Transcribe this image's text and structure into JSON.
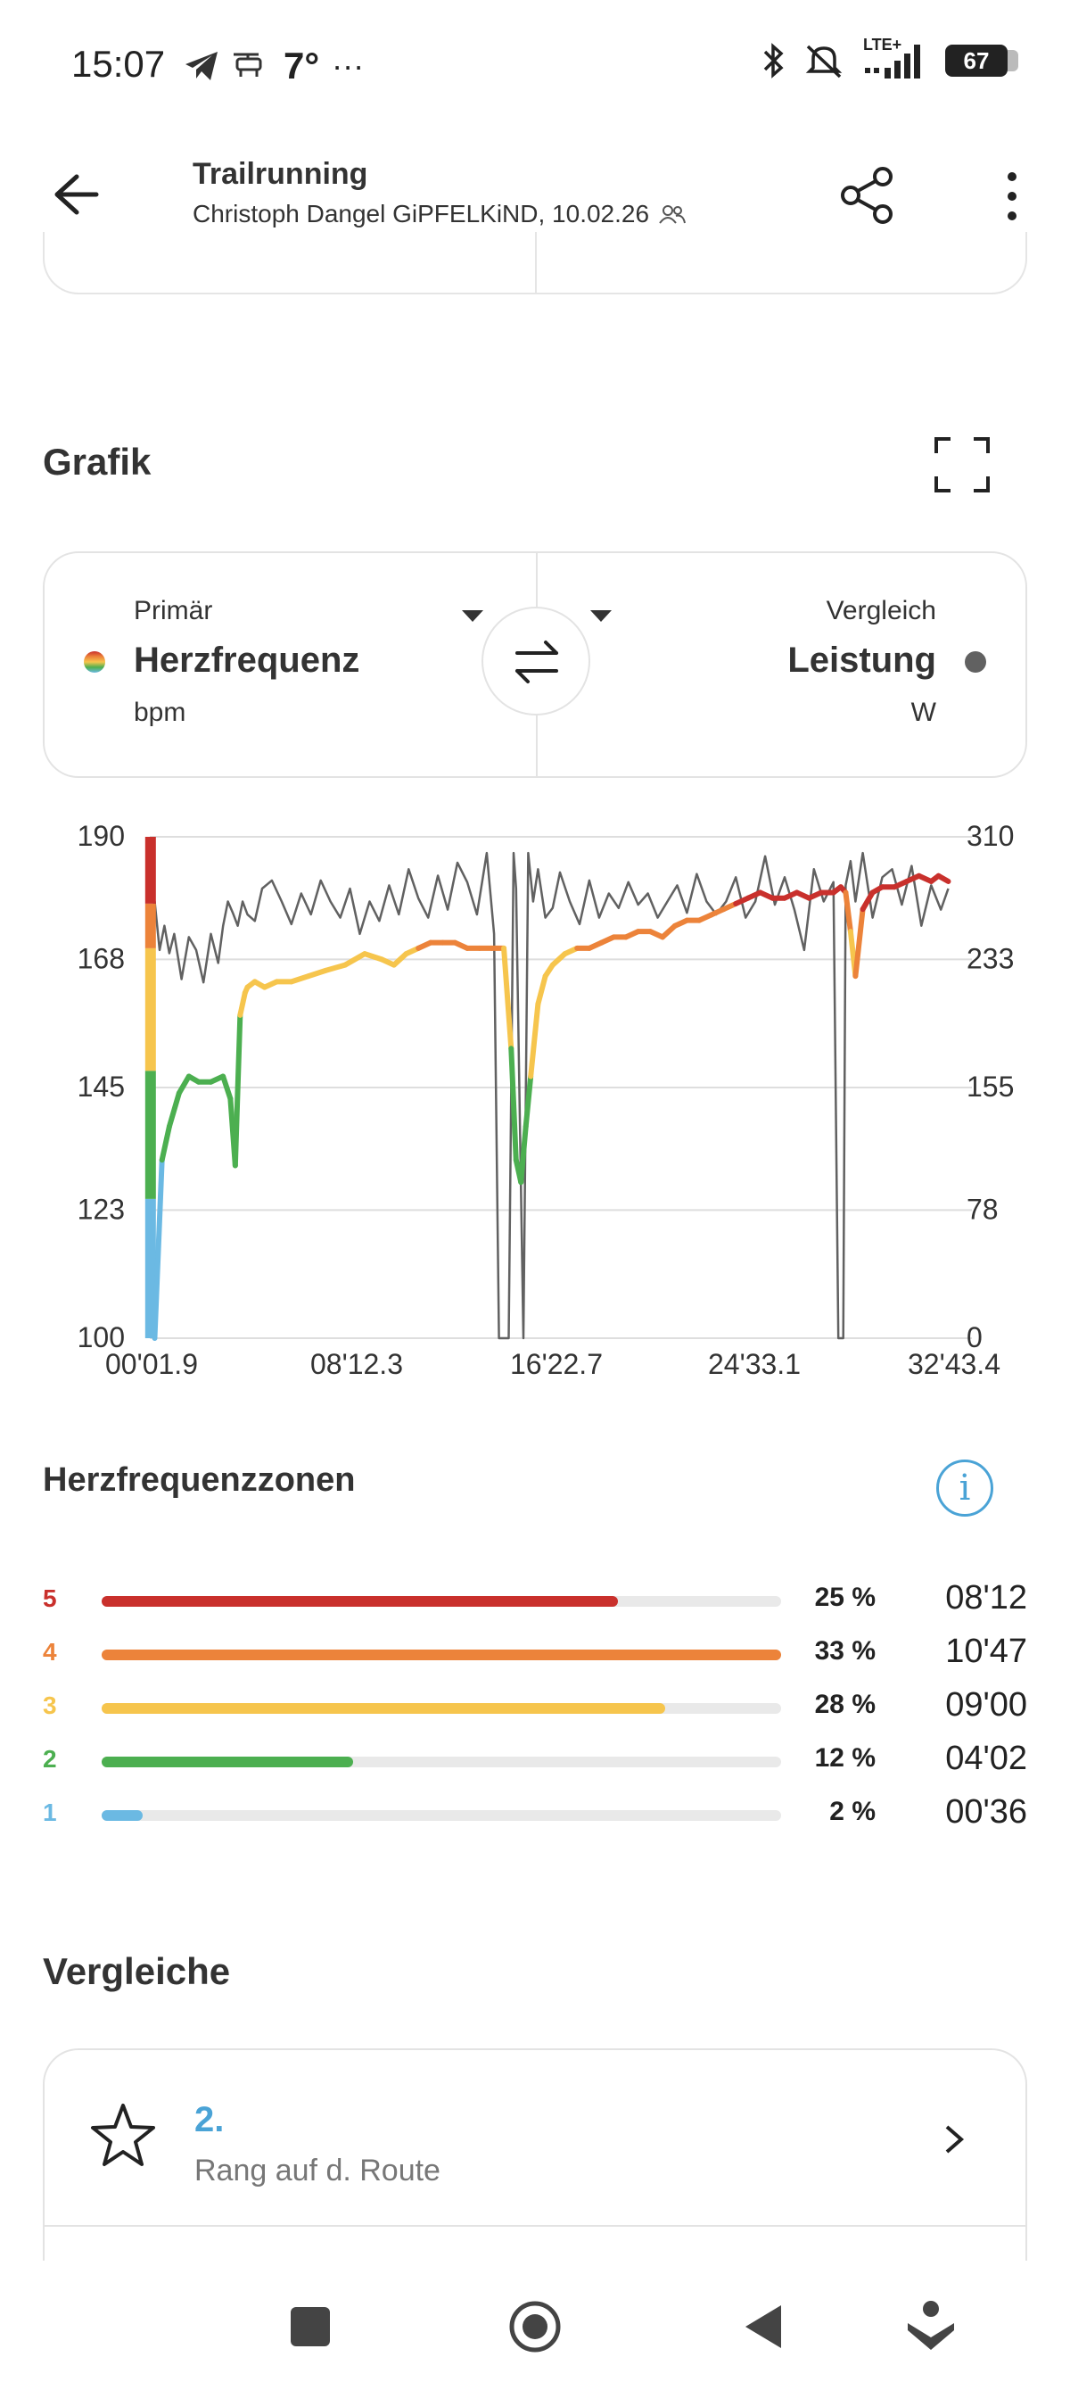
{
  "status_bar": {
    "time": "15:07",
    "temperature": "7°",
    "more": "···",
    "network": "LTE+",
    "battery": "67",
    "icons": [
      "telegram-icon",
      "drone-icon",
      "bluetooth-icon",
      "mute-icon",
      "signal-icon",
      "battery-icon"
    ]
  },
  "header": {
    "title": "Trailrunning",
    "subtitle": "Christoph Dangel GiPFELKiND, 10.02.26"
  },
  "graph_section": {
    "title": "Grafik",
    "primary": {
      "caption": "Primär",
      "metric": "Herzfrequenz",
      "unit": "bpm"
    },
    "compare": {
      "caption": "Vergleich",
      "metric": "Leistung",
      "unit": "W",
      "dot_color": "#616161"
    }
  },
  "chart_data": {
    "type": "line",
    "x_tick_labels": [
      "00'01.9",
      "08'12.3",
      "16'22.7",
      "24'33.1",
      "32'43.4"
    ],
    "y_left_ticks": [
      190,
      168,
      145,
      123,
      100
    ],
    "y_right_ticks": [
      310,
      233,
      155,
      78,
      0
    ],
    "ylim_left": [
      100,
      190
    ],
    "ylim_right": [
      0,
      310
    ],
    "grid": true,
    "zone_colors": {
      "1": "#6bb9e3",
      "2": "#4caf50",
      "3": "#f6c54d",
      "4": "#ec833a",
      "5": "#c9302c"
    },
    "zone_thresholds_bpm": [
      125,
      148,
      170,
      178
    ],
    "series": [
      {
        "name": "Herzfrequenz",
        "axis": "left",
        "x_minutes": [
          0.03,
          0.2,
          0.5,
          0.8,
          1.2,
          1.6,
          2.0,
          2.5,
          3.0,
          3.3,
          3.5,
          3.7,
          3.9,
          4.0,
          4.3,
          4.7,
          5.2,
          5.8,
          6.5,
          7.2,
          8.0,
          8.8,
          9.5,
          10.0,
          10.5,
          11.0,
          11.5,
          12.0,
          12.5,
          13.0,
          13.5,
          14.0,
          14.5,
          14.8,
          15.0,
          15.2,
          15.4,
          15.6,
          15.9,
          16.2,
          16.5,
          17.0,
          17.5,
          18.0,
          18.5,
          19.0,
          19.5,
          20.0,
          20.5,
          21.0,
          21.5,
          22.0,
          22.5,
          23.0,
          23.5,
          24.0,
          24.5,
          25.0,
          25.5,
          26.0,
          26.5,
          27.0,
          27.5,
          28.0,
          28.3,
          28.5,
          28.7,
          28.9,
          29.2,
          29.6,
          30.0,
          30.5,
          31.0,
          31.5,
          32.0,
          32.3,
          32.7
        ],
        "values": [
          190,
          100,
          132,
          138,
          144,
          147,
          146,
          146,
          147,
          143,
          131,
          158,
          162,
          163,
          164,
          163,
          164,
          164,
          165,
          166,
          167,
          169,
          168,
          167,
          169,
          170,
          171,
          171,
          171,
          170,
          170,
          170,
          170,
          152,
          132,
          128,
          138,
          147,
          160,
          165,
          167,
          169,
          170,
          170,
          171,
          172,
          172,
          173,
          173,
          172,
          174,
          175,
          175,
          176,
          177,
          178,
          179,
          180,
          179,
          179,
          180,
          179,
          180,
          180,
          181,
          180,
          173,
          165,
          177,
          180,
          181,
          181,
          182,
          183,
          182,
          183,
          182
        ]
      },
      {
        "name": "Leistung",
        "axis": "right",
        "x_minutes": [
          0.03,
          0.2,
          0.4,
          0.6,
          0.8,
          1.0,
          1.3,
          1.6,
          1.9,
          2.2,
          2.5,
          2.8,
          3.0,
          3.2,
          3.4,
          3.6,
          3.8,
          4.0,
          4.3,
          4.6,
          5.0,
          5.4,
          5.8,
          6.2,
          6.6,
          7.0,
          7.4,
          7.8,
          8.2,
          8.6,
          9.0,
          9.4,
          9.8,
          10.2,
          10.6,
          11.0,
          11.4,
          11.8,
          12.2,
          12.6,
          13.0,
          13.4,
          13.8,
          14.1,
          14.3,
          14.5,
          14.7,
          14.9,
          15.0,
          15.3,
          15.5,
          15.7,
          15.9,
          16.2,
          16.5,
          16.8,
          17.2,
          17.6,
          18.0,
          18.4,
          18.8,
          19.2,
          19.6,
          20.0,
          20.4,
          20.8,
          21.2,
          21.6,
          22.0,
          22.4,
          22.8,
          23.2,
          23.6,
          24.0,
          24.4,
          24.8,
          25.2,
          25.6,
          26.0,
          26.4,
          26.8,
          27.2,
          27.6,
          28.0,
          28.2,
          28.4,
          28.5,
          28.7,
          28.9,
          29.2,
          29.6,
          30.0,
          30.4,
          30.8,
          31.2,
          31.6,
          32.0,
          32.4,
          32.7
        ],
        "values": [
          260,
          270,
          240,
          255,
          238,
          250,
          222,
          248,
          240,
          220,
          250,
          232,
          255,
          270,
          263,
          255,
          270,
          262,
          258,
          278,
          283,
          270,
          256,
          275,
          262,
          283,
          270,
          260,
          278,
          250,
          270,
          258,
          280,
          262,
          290,
          272,
          260,
          286,
          265,
          294,
          282,
          262,
          300,
          250,
          0,
          0,
          0,
          300,
          278,
          0,
          300,
          270,
          290,
          260,
          266,
          288,
          270,
          256,
          283,
          260,
          275,
          266,
          282,
          268,
          275,
          260,
          270,
          280,
          263,
          287,
          270,
          262,
          270,
          285,
          260,
          270,
          298,
          268,
          285,
          265,
          240,
          290,
          270,
          282,
          0,
          0,
          280,
          295,
          270,
          300,
          260,
          285,
          290,
          268,
          292,
          255,
          280,
          265,
          278
        ]
      }
    ]
  },
  "zones": {
    "title": "Herzfrequenzzonen",
    "items": [
      {
        "num": "5",
        "color": "#c9302c",
        "fill": 0.76,
        "pct": "25 %",
        "time": "08'12"
      },
      {
        "num": "4",
        "color": "#ec833a",
        "fill": 1.0,
        "pct": "33 %",
        "time": "10'47"
      },
      {
        "num": "3",
        "color": "#f6c54d",
        "fill": 0.83,
        "pct": "28 %",
        "time": "09'00"
      },
      {
        "num": "2",
        "color": "#4caf50",
        "fill": 0.37,
        "pct": "12 %",
        "time": "04'02"
      },
      {
        "num": "1",
        "color": "#6bb9e3",
        "fill": 0.06,
        "pct": "2 %",
        "time": "00'36"
      }
    ]
  },
  "comparisons": {
    "title": "Vergleiche",
    "rank": "2.",
    "rank_label": "Rang auf d. Route"
  },
  "nav_bar": [
    "square-icon",
    "home-icon",
    "back-icon",
    "assistant-icon"
  ]
}
